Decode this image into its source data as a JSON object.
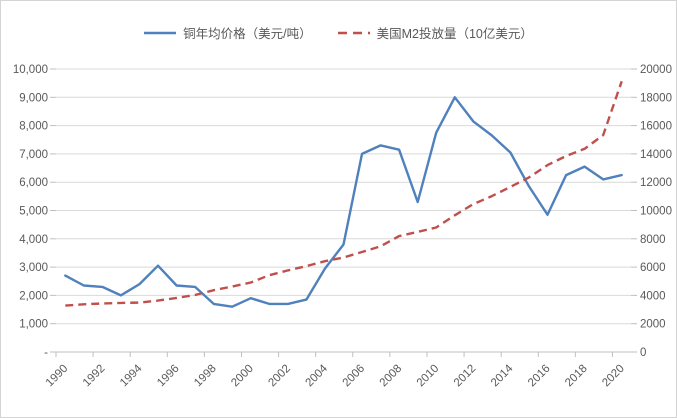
{
  "chart_data": {
    "type": "line",
    "title": "",
    "x": [
      1990,
      1991,
      1992,
      1993,
      1994,
      1995,
      1996,
      1997,
      1998,
      1999,
      2000,
      2001,
      2002,
      2003,
      2004,
      2005,
      2006,
      2007,
      2008,
      2009,
      2010,
      2011,
      2012,
      2013,
      2014,
      2015,
      2016,
      2017,
      2018,
      2019,
      2020
    ],
    "series": [
      {
        "name": "铜年均价格（美元/吨）",
        "axis": "left",
        "style": "solid",
        "color": "#4F81BD",
        "values": [
          2700,
          2350,
          2300,
          2000,
          2400,
          3050,
          2350,
          2300,
          1700,
          1600,
          1900,
          1700,
          1700,
          1850,
          2950,
          3800,
          7000,
          7300,
          7150,
          5300,
          7750,
          9000,
          8150,
          7650,
          7050,
          5850,
          4850,
          6250,
          6550,
          6100,
          6250
        ]
      },
      {
        "name": "美国M2投放量（10亿美元）",
        "axis": "right",
        "style": "dashed",
        "color": "#C0504D",
        "values": [
          3280,
          3370,
          3430,
          3470,
          3490,
          3630,
          3820,
          4030,
          4370,
          4630,
          4910,
          5430,
          5770,
          6070,
          6420,
          6680,
          7070,
          7470,
          8190,
          8490,
          8800,
          9660,
          10450,
          11020,
          11670,
          12340,
          13210,
          13850,
          14360,
          15330,
          19130
        ]
      }
    ],
    "axes": {
      "left": {
        "min": 0,
        "max": 10000,
        "step": 1000,
        "tick_labels": [
          "-",
          "1,000",
          "2,000",
          "3,000",
          "4,000",
          "5,000",
          "6,000",
          "7,000",
          "8,000",
          "9,000",
          "10,000"
        ]
      },
      "right": {
        "min": 0,
        "max": 20000,
        "step": 2000,
        "tick_labels": [
          "0",
          "2000",
          "4000",
          "6000",
          "8000",
          "10000",
          "12000",
          "14000",
          "16000",
          "18000",
          "20000"
        ]
      },
      "x": {
        "tick_labels": [
          "1990",
          "1992",
          "1994",
          "1996",
          "1998",
          "2000",
          "2002",
          "2004",
          "2006",
          "2008",
          "2010",
          "2012",
          "2014",
          "2016",
          "2018",
          "2020"
        ]
      }
    },
    "legend_position": "top",
    "grid": true
  },
  "colors": {
    "copper_line": "#4F81BD",
    "m2_line": "#C0504D",
    "grid_line": "#D9D9D9",
    "axis_line": "#BFBFBF",
    "tick_text": "#595959",
    "background": "#FFFFFF"
  }
}
